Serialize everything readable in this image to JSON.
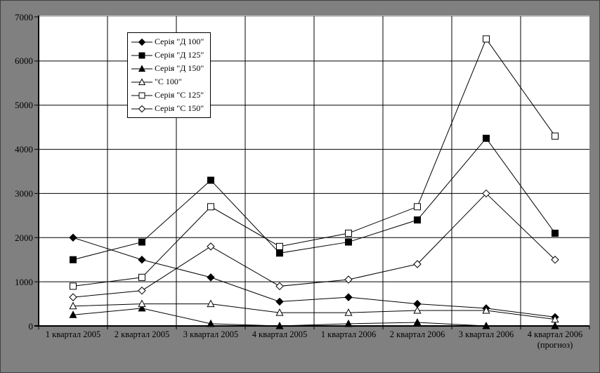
{
  "chart_data": {
    "type": "line",
    "title": "",
    "categories": [
      "1 квартал 2005",
      "2 квартал 2005",
      "3 квартал 2005",
      "4 квартал 2005",
      "1 квартал 2006",
      "2 квартал 2006",
      "3 квартал 2006",
      "4 квартал 2006\n(прогноз)"
    ],
    "series": [
      {
        "name": "Серія \"Д 100\"",
        "marker": "diamond-filled",
        "values": [
          2000,
          1500,
          1100,
          550,
          650,
          500,
          400,
          200
        ]
      },
      {
        "name": "Серія \"Д 125\"",
        "marker": "square-filled",
        "values": [
          1500,
          1900,
          3300,
          1650,
          1900,
          2400,
          4250,
          2100
        ]
      },
      {
        "name": "Серія \"Д 150\"",
        "marker": "triangle-filled",
        "values": [
          250,
          400,
          50,
          0,
          50,
          80,
          0,
          0
        ]
      },
      {
        "name": "\"С 100\"",
        "marker": "triangle-open",
        "values": [
          450,
          500,
          500,
          300,
          300,
          350,
          350,
          150
        ]
      },
      {
        "name": "Серія \"С 125\"",
        "marker": "square-open",
        "values": [
          900,
          1100,
          2700,
          1800,
          2100,
          2700,
          6500,
          4300
        ]
      },
      {
        "name": "Серія \"С 150\"",
        "marker": "diamond-open",
        "values": [
          650,
          800,
          1800,
          900,
          1050,
          1400,
          3000,
          1500
        ]
      }
    ],
    "ylim": [
      0,
      7000
    ],
    "ytick_step": 1000,
    "ytick_labels": [
      "0",
      "1000",
      "2000",
      "3000",
      "4000",
      "5000",
      "6000",
      "7000"
    ],
    "grid": true,
    "legend_position": "top-left-inside",
    "colors": {
      "line": "#000000",
      "marker_open_fill": "#ffffff",
      "plot_bg": "#ffffff",
      "outer_bg": "#808080",
      "plot_top_border": "#c0c0c0",
      "text": "#000000"
    }
  }
}
